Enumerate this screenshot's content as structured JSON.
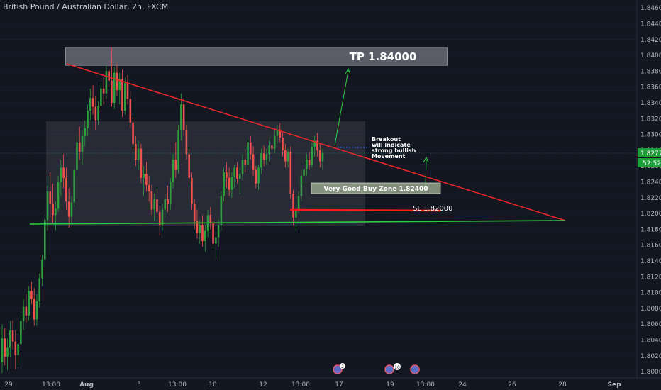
{
  "title": "British Pound / Australian Dollar, 2h, FXCM",
  "colors": {
    "background": "#131722",
    "up": "#26a69a",
    "up_alt": "#2e9e3e",
    "down": "#ef5350",
    "trendline_upper": "#e8262a",
    "trendline_lower": "#2ecc40",
    "tp_box": "#787b86",
    "buy_zone": "#8a9a7a",
    "current_price_bg": "#1e9e3a"
  },
  "price_axis": {
    "labels": [
      "1.84600",
      "1.84400",
      "1.84200",
      "1.84000",
      "1.83800",
      "1.83600",
      "1.83400",
      "1.83200",
      "1.83000",
      "1.82800",
      "1.82600",
      "1.82400",
      "1.82200",
      "1.82000",
      "1.81800",
      "1.81600",
      "1.81400",
      "1.81200",
      "1.81000",
      "1.80800",
      "1.80600",
      "1.80400",
      "1.80200",
      "1.80000"
    ],
    "current_price": "1.82771",
    "countdown": "52:52"
  },
  "time_axis": {
    "labels": [
      "29",
      "13:00",
      "Aug",
      "5",
      "13:00",
      "10",
      "12",
      "13:00",
      "17",
      "19",
      "13:00",
      "24",
      "26",
      "28",
      "Sep"
    ]
  },
  "annotations": {
    "tp_label": "TP 1.84000",
    "breakout_note": [
      "Breakout",
      "will indicate",
      "strong bullish",
      "Movement"
    ],
    "buy_zone_label": "Very Good  Buy Zone 1.82400",
    "sl_label": "SL 1.82000"
  },
  "event_badges": [
    "2",
    "10"
  ],
  "chart_data": {
    "type": "candlestick",
    "symbol": "GBPAUD",
    "timeframe": "2h",
    "y_range": [
      1.7992,
      1.847
    ],
    "key_levels": {
      "take_profit": 1.84,
      "stop_loss": 1.82,
      "buy_zone": 1.824,
      "support": 1.8187
    },
    "candles": [
      [
        1.8012,
        1.806,
        1.7998,
        1.8042
      ],
      [
        1.8042,
        1.8055,
        1.8008,
        1.8019
      ],
      [
        1.8019,
        1.8042,
        1.8002,
        1.803
      ],
      [
        1.803,
        1.8064,
        1.8018,
        1.8052
      ],
      [
        1.8052,
        1.8065,
        1.8028,
        1.8038
      ],
      [
        1.8038,
        1.8052,
        1.8003,
        1.8021
      ],
      [
        1.8021,
        1.8048,
        1.8008,
        1.8035
      ],
      [
        1.8035,
        1.8072,
        1.8026,
        1.8064
      ],
      [
        1.8064,
        1.8092,
        1.8052,
        1.8082
      ],
      [
        1.8082,
        1.8098,
        1.8062,
        1.8071
      ],
      [
        1.8071,
        1.8108,
        1.8065,
        1.8102
      ],
      [
        1.8102,
        1.8114,
        1.8085,
        1.8092
      ],
      [
        1.8092,
        1.8106,
        1.8058,
        1.8066
      ],
      [
        1.8066,
        1.8098,
        1.8058,
        1.8089
      ],
      [
        1.8089,
        1.8124,
        1.8081,
        1.8118
      ],
      [
        1.8118,
        1.8148,
        1.8108,
        1.8142
      ],
      [
        1.8142,
        1.8198,
        1.8132,
        1.8192
      ],
      [
        1.8192,
        1.8235,
        1.8178,
        1.8228
      ],
      [
        1.8228,
        1.8252,
        1.8195,
        1.8212
      ],
      [
        1.8212,
        1.8238,
        1.8188,
        1.8198
      ],
      [
        1.8198,
        1.8215,
        1.8178,
        1.8206
      ],
      [
        1.8206,
        1.8248,
        1.8202,
        1.824
      ],
      [
        1.824,
        1.8268,
        1.8222,
        1.8258
      ],
      [
        1.8258,
        1.8275,
        1.8232,
        1.8245
      ],
      [
        1.8245,
        1.8258,
        1.8205,
        1.8215
      ],
      [
        1.8215,
        1.8232,
        1.8182,
        1.8196
      ],
      [
        1.8196,
        1.8222,
        1.8188,
        1.8214
      ],
      [
        1.8214,
        1.8262,
        1.8208,
        1.8255
      ],
      [
        1.8255,
        1.8298,
        1.8248,
        1.829
      ],
      [
        1.829,
        1.831,
        1.8268,
        1.8278
      ],
      [
        1.8278,
        1.8305,
        1.8262,
        1.8298
      ],
      [
        1.8298,
        1.8318,
        1.8285,
        1.8308
      ],
      [
        1.8308,
        1.8338,
        1.8298,
        1.833
      ],
      [
        1.833,
        1.8358,
        1.8318,
        1.8346
      ],
      [
        1.8346,
        1.8362,
        1.8325,
        1.8335
      ],
      [
        1.8335,
        1.8348,
        1.8305,
        1.8318
      ],
      [
        1.8318,
        1.8342,
        1.8312,
        1.8336
      ],
      [
        1.8336,
        1.8365,
        1.8328,
        1.8358
      ],
      [
        1.8358,
        1.8372,
        1.8338,
        1.8352
      ],
      [
        1.8352,
        1.8388,
        1.8345,
        1.838
      ],
      [
        1.838,
        1.8392,
        1.836,
        1.8368
      ],
      [
        1.8368,
        1.841,
        1.8335,
        1.834
      ],
      [
        1.834,
        1.8385,
        1.8332,
        1.8378
      ],
      [
        1.8378,
        1.839,
        1.8348,
        1.8356
      ],
      [
        1.8356,
        1.8378,
        1.8338,
        1.837
      ],
      [
        1.837,
        1.8382,
        1.8322,
        1.833
      ],
      [
        1.833,
        1.8372,
        1.8325,
        1.8365
      ],
      [
        1.8365,
        1.8375,
        1.8338,
        1.8345
      ],
      [
        1.8345,
        1.8355,
        1.8308,
        1.8315
      ],
      [
        1.8315,
        1.8322,
        1.828,
        1.8288
      ],
      [
        1.8288,
        1.8298,
        1.826,
        1.8268
      ],
      [
        1.8268,
        1.8292,
        1.8255,
        1.8282
      ],
      [
        1.8282,
        1.8288,
        1.8238,
        1.8245
      ],
      [
        1.8245,
        1.826,
        1.8222,
        1.825
      ],
      [
        1.825,
        1.8265,
        1.8228,
        1.8236
      ],
      [
        1.8236,
        1.8248,
        1.8215,
        1.8228
      ],
      [
        1.8228,
        1.8236,
        1.8198,
        1.8205
      ],
      [
        1.8205,
        1.8225,
        1.819,
        1.8218
      ],
      [
        1.8218,
        1.8232,
        1.8195,
        1.8202
      ],
      [
        1.8202,
        1.821,
        1.8172,
        1.8185
      ],
      [
        1.8185,
        1.8212,
        1.8178,
        1.8205
      ],
      [
        1.8205,
        1.8225,
        1.8195,
        1.8218
      ],
      [
        1.8218,
        1.8235,
        1.8202,
        1.8212
      ],
      [
        1.8212,
        1.8245,
        1.8205,
        1.824
      ],
      [
        1.824,
        1.8275,
        1.8232,
        1.8268
      ],
      [
        1.8268,
        1.829,
        1.8245,
        1.8255
      ],
      [
        1.8255,
        1.8312,
        1.825,
        1.8305
      ],
      [
        1.8305,
        1.8352,
        1.8292,
        1.8338
      ],
      [
        1.8338,
        1.8345,
        1.8298,
        1.8305
      ],
      [
        1.8305,
        1.8312,
        1.8268,
        1.8275
      ],
      [
        1.8275,
        1.8282,
        1.8238,
        1.8245
      ],
      [
        1.8245,
        1.8252,
        1.8205,
        1.8212
      ],
      [
        1.8212,
        1.8218,
        1.818,
        1.819
      ],
      [
        1.819,
        1.8205,
        1.8168,
        1.8175
      ],
      [
        1.8175,
        1.8192,
        1.8162,
        1.8185
      ],
      [
        1.8185,
        1.8198,
        1.8158,
        1.8165
      ],
      [
        1.8165,
        1.8185,
        1.8152,
        1.8178
      ],
      [
        1.8178,
        1.8205,
        1.817,
        1.8198
      ],
      [
        1.8198,
        1.8208,
        1.818,
        1.8188
      ],
      [
        1.8188,
        1.8195,
        1.8155,
        1.8162
      ],
      [
        1.8162,
        1.8178,
        1.8142,
        1.817
      ],
      [
        1.817,
        1.8192,
        1.8158,
        1.8185
      ],
      [
        1.8185,
        1.8228,
        1.8178,
        1.8222
      ],
      [
        1.8222,
        1.8258,
        1.8215,
        1.8252
      ],
      [
        1.8252,
        1.8265,
        1.8232,
        1.8245
      ],
      [
        1.8245,
        1.8258,
        1.8222,
        1.823
      ],
      [
        1.823,
        1.8252,
        1.822,
        1.8246
      ],
      [
        1.8246,
        1.8262,
        1.8232,
        1.8258
      ],
      [
        1.8258,
        1.8265,
        1.8238,
        1.8244
      ],
      [
        1.8244,
        1.8258,
        1.8225,
        1.825
      ],
      [
        1.825,
        1.8275,
        1.8242,
        1.8268
      ],
      [
        1.8268,
        1.8282,
        1.8252,
        1.8262
      ],
      [
        1.8262,
        1.8295,
        1.8258,
        1.829
      ],
      [
        1.829,
        1.8298,
        1.8268,
        1.8275
      ],
      [
        1.8275,
        1.8285,
        1.8248,
        1.8255
      ],
      [
        1.8255,
        1.826,
        1.8232,
        1.8238
      ],
      [
        1.8238,
        1.8262,
        1.823,
        1.8258
      ],
      [
        1.8258,
        1.8282,
        1.825,
        1.8276
      ],
      [
        1.8276,
        1.8286,
        1.826,
        1.8268
      ],
      [
        1.8268,
        1.8282,
        1.8262,
        1.8275
      ],
      [
        1.8275,
        1.8292,
        1.8266,
        1.8286
      ],
      [
        1.8286,
        1.8298,
        1.8275,
        1.8282
      ],
      [
        1.8282,
        1.8305,
        1.8276,
        1.8298
      ],
      [
        1.8298,
        1.8312,
        1.8288,
        1.8306
      ],
      [
        1.8306,
        1.8314,
        1.829,
        1.8296
      ],
      [
        1.8296,
        1.8302,
        1.8272,
        1.828
      ],
      [
        1.828,
        1.8288,
        1.8258,
        1.8266
      ],
      [
        1.8266,
        1.8282,
        1.8258,
        1.8278
      ],
      [
        1.8278,
        1.8285,
        1.8218,
        1.8225
      ],
      [
        1.8225,
        1.823,
        1.8185,
        1.8195
      ],
      [
        1.8195,
        1.8212,
        1.8178,
        1.8205
      ],
      [
        1.8205,
        1.8228,
        1.82,
        1.8222
      ],
      [
        1.8222,
        1.8255,
        1.8215,
        1.8248
      ],
      [
        1.8248,
        1.8262,
        1.8238,
        1.8256
      ],
      [
        1.8256,
        1.8275,
        1.8248,
        1.8268
      ],
      [
        1.8268,
        1.8278,
        1.8255,
        1.8262
      ],
      [
        1.8262,
        1.829,
        1.8258,
        1.8284
      ],
      [
        1.8284,
        1.8298,
        1.8272,
        1.8292
      ],
      [
        1.8292,
        1.8302,
        1.8272,
        1.828
      ],
      [
        1.828,
        1.8288,
        1.8258,
        1.8266
      ],
      [
        1.8266,
        1.8282,
        1.8255,
        1.8276
      ]
    ]
  }
}
